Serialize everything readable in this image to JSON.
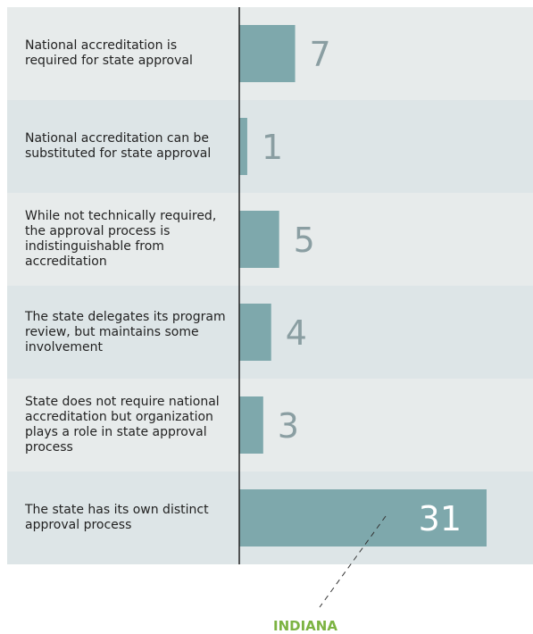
{
  "chart_data": {
    "type": "bar",
    "orientation": "horizontal",
    "categories": [
      "National accreditation is required for state approval",
      "National accreditation can be substituted for state approval",
      "While not technically required, the approval process is indistinguishable from accreditation",
      "The state delegates its program review, but maintains some involvement",
      "State does not require national accreditation but organization plays a role in state approval process",
      "The state has its own distinct approval process"
    ],
    "values": [
      7,
      1,
      5,
      4,
      3,
      31
    ],
    "color": "#7ea8ac",
    "annotation": "INDIANA",
    "annotation_color": "#7cb342"
  }
}
